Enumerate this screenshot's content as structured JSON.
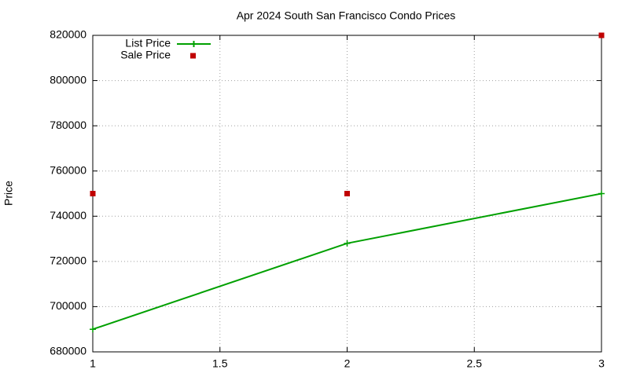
{
  "chart_data": {
    "type": "line",
    "title": "Apr 2024 South San Francisco Condo Prices",
    "y_label": "Price",
    "x": [
      1,
      2,
      3
    ],
    "series": [
      {
        "name": "List Price",
        "color": "#00a000",
        "values": [
          690000,
          728000,
          750000
        ]
      },
      {
        "name": "Sale Price",
        "color": "#c00000",
        "values": [
          750000,
          750000,
          820000
        ],
        "style": "points"
      }
    ],
    "xlim": [
      1,
      3
    ],
    "xticks": [
      1,
      1.5,
      2,
      2.5,
      3
    ],
    "ylim": [
      680000,
      820000
    ],
    "yticks": [
      680000,
      700000,
      720000,
      740000,
      760000,
      780000,
      800000,
      820000
    ],
    "grid": true,
    "legend": "top-left"
  }
}
